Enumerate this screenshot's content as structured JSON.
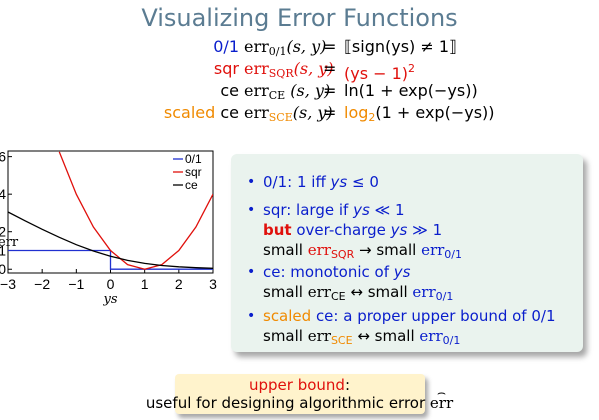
{
  "title": "Visualizing Error Functions",
  "equations": [
    {
      "name": "0/1",
      "name_color": "#0a1ecc",
      "lhs_err": "err",
      "lhs_sub": "0/1",
      "lhs_args": "(s, y)",
      "eq": "=",
      "rhs": "⟦sign(ys) ≠ 1⟧"
    },
    {
      "name": "sqr",
      "name_color": "#e0100c",
      "lhs_err": "err",
      "lhs_sub": "SQR",
      "lhs_args": "(s, y)",
      "eq": "=",
      "rhs": "(ys − 1)",
      "rhs_sup": "2"
    },
    {
      "name": "ce",
      "name_color": "#000000",
      "lhs_err": "err",
      "lhs_sub": "CE",
      "lhs_args": " (s, y)",
      "eq": "=",
      "rhs": "ln(1 + exp(−ys))"
    },
    {
      "name_prefix": "scaled",
      "name": " ce",
      "name_color": "#f08a00",
      "lhs_err": "err",
      "lhs_sub": "SCE",
      "lhs_args": "(s, y)",
      "eq": "=",
      "rhs_pre": "log",
      "rhs_sub": "2",
      "rhs": "(1 + exp(−ys))"
    }
  ],
  "chart_data": {
    "type": "line",
    "xlabel": "ys",
    "ylabel": "err",
    "xlim": [
      -3,
      3
    ],
    "ylim": [
      -0.2,
      6.3
    ],
    "xticks": [
      "−3",
      "−2",
      "−1",
      "0",
      "1",
      "2",
      "3"
    ],
    "yticks": [
      "0",
      "1",
      "2",
      "4",
      "6"
    ],
    "legend_position": "top-right",
    "legend": [
      "0/1",
      "sqr",
      "ce"
    ],
    "series": [
      {
        "name": "0/1",
        "color": "#2030d0",
        "x": [
          -3,
          0,
          0,
          3
        ],
        "y": [
          1,
          1,
          0,
          0
        ]
      },
      {
        "name": "sqr",
        "color": "#e0100c",
        "x": [
          -1.5,
          -1,
          -0.5,
          0,
          0.5,
          1,
          1.5,
          2,
          2.5,
          3
        ],
        "y": [
          6.25,
          4,
          2.25,
          1,
          0.25,
          0,
          0.25,
          1,
          2.25,
          4
        ]
      },
      {
        "name": "ce",
        "color": "#000000",
        "x": [
          -3,
          -2.5,
          -2,
          -1.5,
          -1,
          -0.5,
          0,
          0.5,
          1,
          1.5,
          2,
          2.5,
          3
        ],
        "y": [
          3.05,
          2.58,
          2.13,
          1.7,
          1.31,
          0.97,
          0.69,
          0.47,
          0.31,
          0.2,
          0.13,
          0.08,
          0.05
        ]
      }
    ]
  },
  "bullets": [
    {
      "parts": [
        {
          "t": "0/1: 1 iff ",
          "c": "#0a1ecc"
        },
        {
          "t": "ys",
          "c": "#0a1ecc",
          "i": true
        },
        {
          "t": " ≤ 0",
          "c": "#0a1ecc"
        }
      ]
    },
    {
      "parts": [
        {
          "t": "sqr: large if ",
          "c": "#0a1ecc"
        },
        {
          "t": "ys",
          "c": "#0a1ecc",
          "i": true
        },
        {
          "t": " ≪ 1",
          "c": "#0a1ecc"
        }
      ],
      "line2": [
        {
          "t": "but",
          "c": "#e0100c",
          "b": true
        },
        {
          "t": " over-charge ",
          "c": "#0a1ecc"
        },
        {
          "t": "ys",
          "c": "#0a1ecc",
          "i": true
        },
        {
          "t": " ≫ 1",
          "c": "#0a1ecc"
        }
      ],
      "line3": [
        {
          "t": "small ",
          "c": "#000"
        },
        {
          "t": "err",
          "c": "#e0100c",
          "s": true
        },
        {
          "t": "SQR",
          "c": "#e0100c",
          "sub": true
        },
        {
          "t": " → small ",
          "c": "#000"
        },
        {
          "t": "err",
          "c": "#0a1ecc",
          "s": true
        },
        {
          "t": "0/1",
          "c": "#0a1ecc",
          "sub": true
        }
      ]
    },
    {
      "parts": [
        {
          "t": "ce: monotonic of ",
          "c": "#0a1ecc"
        },
        {
          "t": "ys",
          "c": "#0a1ecc",
          "i": true
        }
      ],
      "line2": [
        {
          "t": "small ",
          "c": "#000"
        },
        {
          "t": "err",
          "c": "#000",
          "s": true
        },
        {
          "t": "CE",
          "c": "#000",
          "sub": true
        },
        {
          "t": " ↔ small ",
          "c": "#000"
        },
        {
          "t": "err",
          "c": "#0a1ecc",
          "s": true
        },
        {
          "t": "0/1",
          "c": "#0a1ecc",
          "sub": true
        }
      ]
    },
    {
      "parts": [
        {
          "t": "scaled",
          "c": "#f08a00"
        },
        {
          "t": " ce: a proper upper bound of ",
          "c": "#0a1ecc"
        },
        {
          "t": "0/1",
          "c": "#0a1ecc"
        }
      ],
      "line2": [
        {
          "t": "small ",
          "c": "#000"
        },
        {
          "t": "err",
          "c": "#000",
          "s": true
        },
        {
          "t": "SCE",
          "c": "#f08a00",
          "sub": true
        },
        {
          "t": " ↔ small ",
          "c": "#000"
        },
        {
          "t": "err",
          "c": "#0a1ecc",
          "s": true
        },
        {
          "t": "0/1",
          "c": "#0a1ecc",
          "sub": true
        }
      ]
    }
  ],
  "bottom": {
    "line1": "upper bound",
    "line1_suffix": ":",
    "line2": "useful for designing algorithmic error ",
    "line2_math": "err"
  }
}
